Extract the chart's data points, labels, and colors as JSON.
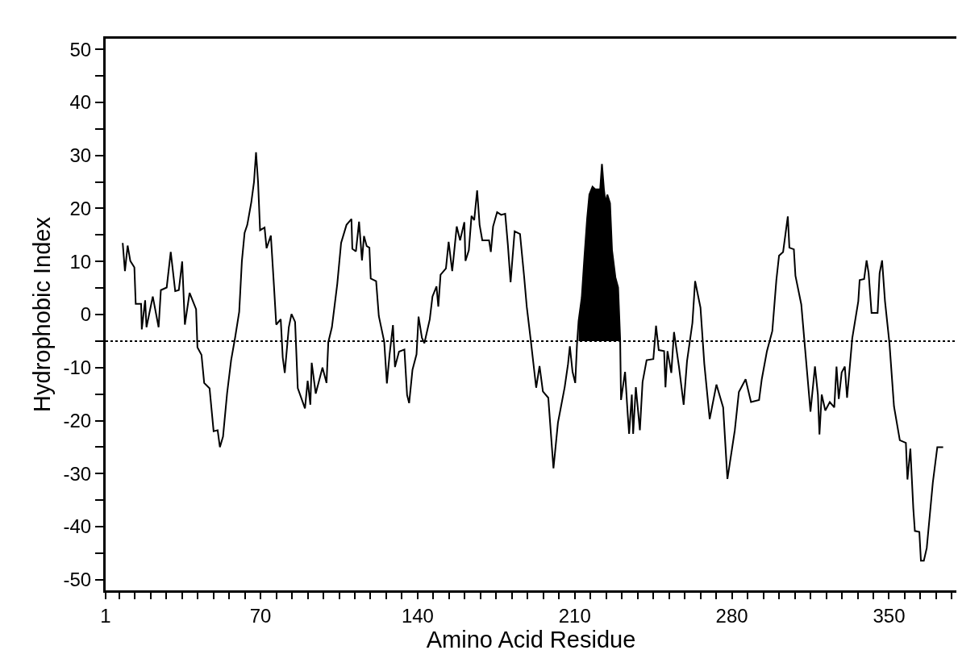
{
  "chart_data": {
    "type": "line",
    "xlabel": "Amino Acid Residue",
    "ylabel": "Hydrophobic Index",
    "xlim": [
      1,
      380
    ],
    "ylim": [
      -52,
      52
    ],
    "xticks": [
      1,
      {
        "value": 7,
        "label": null
      },
      {
        "value": 14,
        "label": null
      },
      {
        "value": 21,
        "label": null
      },
      {
        "value": 28,
        "label": null
      },
      {
        "value": 35,
        "label": null
      },
      {
        "value": 42,
        "label": null
      },
      {
        "value": 49,
        "label": null
      },
      {
        "value": 56,
        "label": null
      },
      {
        "value": 63,
        "label": null
      },
      70,
      {
        "value": 77,
        "label": null
      },
      {
        "value": 84,
        "label": null
      },
      {
        "value": 91,
        "label": null
      },
      {
        "value": 98,
        "label": null
      },
      {
        "value": 105,
        "label": null
      },
      {
        "value": 112,
        "label": null
      },
      {
        "value": 119,
        "label": null
      },
      {
        "value": 126,
        "label": null
      },
      {
        "value": 133,
        "label": null
      },
      140,
      {
        "value": 147,
        "label": null
      },
      {
        "value": 154,
        "label": null
      },
      {
        "value": 161,
        "label": null
      },
      {
        "value": 168,
        "label": null
      },
      {
        "value": 175,
        "label": null
      },
      {
        "value": 182,
        "label": null
      },
      {
        "value": 189,
        "label": null
      },
      {
        "value": 196,
        "label": null
      },
      {
        "value": 203,
        "label": null
      },
      210,
      {
        "value": 217,
        "label": null
      },
      {
        "value": 224,
        "label": null
      },
      {
        "value": 231,
        "label": null
      },
      {
        "value": 238,
        "label": null
      },
      {
        "value": 245,
        "label": null
      },
      {
        "value": 252,
        "label": null
      },
      {
        "value": 259,
        "label": null
      },
      {
        "value": 266,
        "label": null
      },
      {
        "value": 273,
        "label": null
      },
      280,
      {
        "value": 287,
        "label": null
      },
      {
        "value": 294,
        "label": null
      },
      {
        "value": 301,
        "label": null
      },
      {
        "value": 308,
        "label": null
      },
      {
        "value": 315,
        "label": null
      },
      {
        "value": 322,
        "label": null
      },
      {
        "value": 329,
        "label": null
      },
      {
        "value": 336,
        "label": null
      },
      {
        "value": 343,
        "label": null
      },
      350,
      {
        "value": 357,
        "label": null
      },
      {
        "value": 364,
        "label": null
      },
      {
        "value": 371,
        "label": null
      },
      {
        "value": 378,
        "label": null
      }
    ],
    "yticks": [
      -50,
      {
        "value": -45,
        "label": null
      },
      -40,
      {
        "value": -35,
        "label": null
      },
      -30,
      {
        "value": -25,
        "label": null
      },
      -20,
      {
        "value": -15,
        "label": null
      },
      -10,
      {
        "value": -5,
        "label": null
      },
      0,
      {
        "value": 5,
        "label": null
      },
      10,
      {
        "value": 15,
        "label": null
      },
      20,
      {
        "value": 25,
        "label": null
      },
      30,
      {
        "value": 35,
        "label": null
      },
      40,
      {
        "value": 45,
        "label": null
      },
      50
    ],
    "ref_lines": [
      {
        "axis": "y",
        "value": -5,
        "color": "#000000",
        "line_style": "dotted"
      }
    ],
    "series": [
      {
        "color": "#000000",
        "x": [
          8.6,
          9.6,
          10.8,
          12,
          13.8,
          14.4,
          16.8,
          17.1,
          18.6,
          19.2,
          22,
          24.6,
          25.6,
          28.2,
          30,
          32,
          33.6,
          35.1,
          36.3,
          38.4,
          41.3,
          41.9,
          43.7,
          44.9,
          47.3,
          49.1,
          50.9,
          51.9,
          53.3,
          55.1,
          56.9,
          58.7,
          60.5,
          61.7,
          62.9,
          64.1,
          65.9,
          67.1,
          68,
          68.9,
          69.8,
          71.8,
          72.7,
          74.6,
          76,
          77,
          79,
          79.9,
          80.8,
          82.6,
          83.8,
          85.4,
          86.6,
          89.8,
          91,
          92.2,
          92.8,
          94.6,
          97.6,
          99.4,
          100.2,
          101.8,
          104.2,
          105.9,
          108.3,
          110.5,
          110.9,
          112.5,
          113.9,
          115.2,
          116.1,
          117.3,
          118.5,
          119.1,
          121.5,
          122.7,
          125.1,
          126.3,
          127.5,
          129,
          129.9,
          131.7,
          134.1,
          135.3,
          136.2,
          137.7,
          139.5,
          140.4,
          141.9,
          143,
          145.4,
          146.6,
          148.4,
          149.2,
          150.2,
          152.6,
          153.8,
          155.4,
          157.4,
          158.9,
          160.8,
          161.3,
          162.8,
          164,
          165.2,
          166.5,
          167.6,
          168.8,
          171.8,
          172.6,
          173.6,
          175.4,
          177.2,
          179,
          180.2,
          181.4,
          183.2,
          185.6,
          187.4,
          188.6,
          190.4,
          192.8,
          194.3,
          195.8,
          198.2,
          200.5,
          202.5,
          205.5,
          207,
          207.8,
          209,
          210.2,
          211,
          211.7,
          213.1,
          214.3,
          215.5,
          216.5,
          217.9,
          219.1,
          221.3,
          222.1,
          223,
          223.7,
          224.5,
          225.7,
          226.6,
          228.1,
          229.3,
          230.2,
          230.6,
          232.4,
          233.6,
          234.2,
          235.4,
          236,
          237.2,
          239,
          240.2,
          242,
          245,
          246.2,
          247.4,
          249.8,
          250.4,
          251.3,
          253,
          254.2,
          256.4,
          258.5,
          260,
          262.4,
          263.6,
          266,
          267.7,
          270.1,
          273.1,
          276.1,
          278,
          281.3,
          283.1,
          286.1,
          288.5,
          292.1,
          293.3,
          295.6,
          298,
          299.8,
          301,
          302.8,
          304.9,
          305.6,
          307.6,
          308.3,
          310.9,
          312.2,
          313.6,
          315,
          317,
          318.3,
          319,
          320,
          321.6,
          323.6,
          325.6,
          326.6,
          327.6,
          328.9,
          330.3,
          331.3,
          333.6,
          336.3,
          336.9,
          338.9,
          340,
          340.9,
          342.2,
          344.9,
          345.8,
          346.9,
          348.2,
          350.2,
          352.2,
          354.8,
          357.5,
          358.2,
          359.5,
          360.8,
          361.5,
          363.5,
          364.2,
          365.5,
          366.8,
          369.5,
          371.5,
          374.1
        ],
        "values": [
          13.5,
          8.2,
          13,
          10.1,
          8.9,
          2,
          2,
          -2.8,
          2.7,
          -2.4,
          3.4,
          -2.4,
          4.6,
          5.1,
          11.8,
          4.4,
          4.6,
          10,
          -1.9,
          4.1,
          1,
          -6.2,
          -7.6,
          -12.9,
          -13.9,
          -22,
          -21.8,
          -25,
          -23,
          -14.9,
          -8.6,
          -4.3,
          0.5,
          10.1,
          15.4,
          16.9,
          21.2,
          25,
          30.6,
          25,
          15.9,
          16.4,
          12.5,
          14.9,
          5.3,
          -1.9,
          -0.9,
          -8.1,
          -11,
          -2.4,
          0.1,
          -1.4,
          -13.9,
          -17.7,
          -12.5,
          -17,
          -9.1,
          -14.9,
          -10,
          -12.9,
          -5.2,
          -2.4,
          5.8,
          13.5,
          16.9,
          18,
          12.4,
          11.9,
          17.5,
          10.2,
          14.8,
          12.9,
          12.6,
          6.8,
          6.3,
          -0.3,
          -5.1,
          -13,
          -7.5,
          -2,
          -9.9,
          -7,
          -6.6,
          -15.2,
          -16.7,
          -10.4,
          -7.5,
          -0.4,
          -4.4,
          -5.4,
          -0.9,
          3.4,
          5.3,
          1.5,
          7.5,
          8.7,
          13.7,
          8.2,
          16.6,
          14,
          17.4,
          10.1,
          12.1,
          18.6,
          17.8,
          23.4,
          16.9,
          14,
          14,
          11.8,
          16.6,
          19.3,
          18.8,
          19,
          13.1,
          6.1,
          15.7,
          15.2,
          7.3,
          1.5,
          -4.9,
          -13.8,
          -9.7,
          -14.5,
          -15.7,
          -29,
          -20.4,
          -13.7,
          -9.3,
          -6,
          -10.8,
          -12.9,
          -5.5,
          -1.2,
          3.2,
          10.9,
          18.1,
          22.6,
          24.1,
          23.6,
          23.6,
          28.4,
          23.6,
          21,
          22.6,
          21,
          12.1,
          7,
          5.1,
          -4.5,
          -16.1,
          -10.8,
          -18.9,
          -22.5,
          -15.1,
          -22.5,
          -13.7,
          -21.8,
          -12.7,
          -8.6,
          -8.4,
          -2.1,
          -6.7,
          -6.9,
          -13.7,
          -6.9,
          -11,
          -3.3,
          -9.8,
          -17,
          -8.8,
          -1.6,
          6.3,
          1.3,
          -9.3,
          -19.7,
          -13.2,
          -17.5,
          -31,
          -21.8,
          -14.6,
          -12.2,
          -16.5,
          -16.1,
          -12.2,
          -6.9,
          -3.1,
          6.5,
          11.1,
          11.8,
          18.5,
          12.6,
          12.3,
          7.3,
          1.9,
          -4.5,
          -11.4,
          -18.3,
          -9.8,
          -15.1,
          -22.6,
          -15.1,
          -18.1,
          -16.5,
          -17.5,
          -9.8,
          -15.9,
          -10.9,
          -9.8,
          -15.7,
          -4.5,
          2.5,
          6.5,
          6.7,
          10.2,
          7.8,
          0.3,
          0.3,
          7.8,
          10.2,
          2.5,
          -5.5,
          -17.3,
          -23.7,
          -24.2,
          -31.1,
          -25.3,
          -36.5,
          -40.8,
          -41,
          -46.4,
          -46.4,
          -44,
          -31.7,
          -25,
          -25
        ],
        "lower": [
          null,
          null,
          null,
          null,
          null,
          null,
          null,
          null,
          null,
          null,
          null,
          null,
          null,
          null,
          null,
          null,
          null,
          null,
          null,
          null,
          null,
          null,
          null,
          null,
          null,
          null,
          null,
          null,
          null,
          null,
          null,
          null,
          null,
          null,
          null,
          null,
          null,
          null,
          null,
          null,
          null,
          null,
          null,
          null,
          null,
          null,
          null,
          null,
          null,
          null,
          null,
          null,
          null,
          null,
          null,
          null,
          null,
          null,
          null,
          null,
          null,
          null,
          null,
          null,
          null,
          null,
          null,
          null,
          null,
          null,
          null,
          null,
          null,
          null,
          null,
          null,
          null,
          null,
          null,
          null,
          null,
          null,
          null,
          null,
          null,
          null,
          null,
          null,
          null,
          null,
          null,
          null,
          null,
          null,
          null,
          null,
          null,
          null,
          null,
          null,
          null,
          null,
          null,
          null,
          null,
          null,
          null,
          null,
          null,
          null,
          null,
          null,
          null,
          null,
          null,
          null,
          null,
          null,
          null,
          null,
          null,
          null,
          null,
          null,
          null,
          null,
          null,
          null,
          null,
          null,
          null,
          null,
          null,
          -5,
          -5,
          -5,
          -5,
          -5,
          -5,
          -5,
          -5,
          -5,
          -5,
          -5,
          -5,
          -5,
          -5,
          -5,
          -5,
          -5,
          null,
          null,
          null,
          null,
          null,
          null,
          null,
          null,
          null,
          null,
          null,
          null,
          null,
          null,
          null,
          null,
          null,
          null,
          null,
          null,
          null,
          null,
          null,
          null,
          null,
          null,
          null,
          null,
          null,
          null,
          null,
          null,
          null,
          null,
          null,
          null,
          null,
          null,
          null,
          null,
          null,
          null,
          null,
          null,
          null,
          null,
          null,
          null,
          null,
          null,
          null,
          null,
          null,
          null,
          null,
          null,
          null,
          null,
          null,
          null,
          null,
          null,
          null,
          null,
          null,
          null,
          null,
          null,
          null,
          null,
          null,
          null,
          null,
          null,
          null,
          null,
          null,
          null,
          null,
          null,
          null,
          null,
          null,
          null,
          null,
          null
        ],
        "upper": [
          null,
          null,
          null,
          null,
          null,
          null,
          null,
          null,
          null,
          null,
          null,
          null,
          null,
          null,
          null,
          null,
          null,
          null,
          null,
          null,
          null,
          null,
          null,
          null,
          null,
          null,
          null,
          null,
          null,
          null,
          null,
          null,
          null,
          null,
          null,
          null,
          null,
          null,
          null,
          null,
          null,
          null,
          null,
          null,
          null,
          null,
          null,
          null,
          null,
          null,
          null,
          null,
          null,
          null,
          null,
          null,
          null,
          null,
          null,
          null,
          null,
          null,
          null,
          null,
          null,
          null,
          null,
          null,
          null,
          null,
          null,
          null,
          null,
          null,
          null,
          null,
          null,
          null,
          null,
          null,
          null,
          null,
          null,
          null,
          null,
          null,
          null,
          null,
          null,
          null,
          null,
          null,
          null,
          null,
          null,
          null,
          null,
          null,
          null,
          null,
          null,
          null,
          null,
          null,
          null,
          null,
          null,
          null,
          null,
          null,
          null,
          null,
          null,
          null,
          null,
          null,
          null,
          null,
          null,
          null,
          null,
          null,
          null,
          null,
          null,
          null,
          null,
          null,
          null,
          null,
          null,
          null,
          null,
          -1.2,
          3.2,
          10.9,
          18.1,
          22.6,
          24.1,
          23.6,
          23.6,
          28.4,
          23.6,
          21,
          22.6,
          21,
          12.1,
          7,
          5.1,
          -4.5,
          null,
          null,
          null,
          null,
          null,
          null,
          null,
          null,
          null,
          null,
          null,
          null,
          null,
          null,
          null,
          null,
          null,
          null,
          null,
          null,
          null,
          null,
          null,
          null,
          null,
          null,
          null,
          null,
          null,
          null,
          null,
          null,
          null,
          null,
          null,
          null,
          null,
          null,
          null,
          null,
          null,
          null,
          null,
          null,
          null,
          null,
          null,
          null,
          null,
          null,
          null,
          null,
          null,
          null,
          null,
          null,
          null,
          null,
          null,
          null,
          null,
          null,
          null,
          null,
          null,
          null,
          null,
          null,
          null,
          null,
          null,
          null,
          null,
          null,
          null,
          null,
          null,
          null,
          null,
          null,
          null,
          null,
          null,
          null,
          null,
          null
        ]
      }
    ]
  }
}
